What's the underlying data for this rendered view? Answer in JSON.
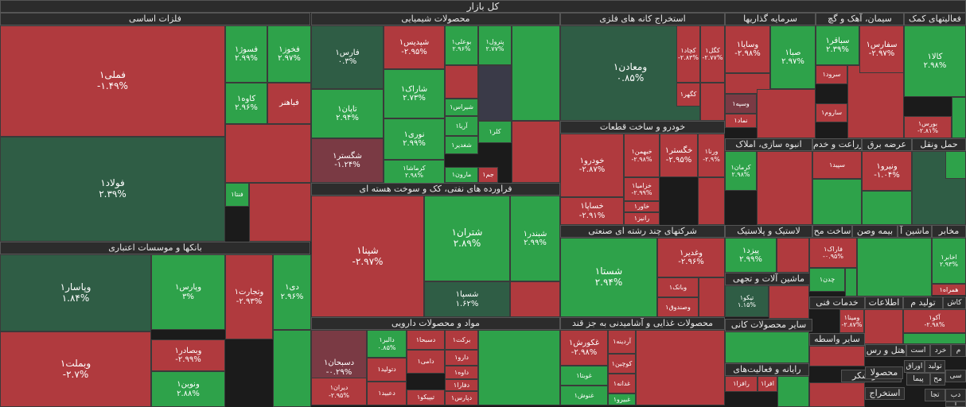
{
  "title": "کل بازار",
  "chart_data": {
    "type": "treemap",
    "colors": {
      "neg": "#b03a3e",
      "negDark": "#7a3a44",
      "pos": "#2ea24a",
      "posDark": "#2f5d45",
      "neutral": "#3a3a48"
    },
    "sectors": [
      {
        "name": "فلزات اساسی",
        "tiles": [
          {
            "n": "فملی۱",
            "v": "-۱.۴۹%"
          },
          {
            "n": "فولاد۱",
            "v": "۲.۳۹%"
          },
          {
            "n": "فخوز۱",
            "v": "۲.۹۷%"
          },
          {
            "n": "فسوژ۱",
            "v": "۲.۹۹%"
          },
          {
            "n": "کاوه۱",
            "v": "۲.۹۶%"
          },
          {
            "n": "فباهنر",
            "v": ""
          },
          {
            "n": "فنتا۱",
            "v": ""
          }
        ]
      },
      {
        "name": "محصولات شیمیایی",
        "tiles": [
          {
            "n": "فارس۱",
            "v": "۰.۳%"
          },
          {
            "n": "شپدیس۱",
            "v": "-۲.۹۵%"
          },
          {
            "n": "بوعلی۱",
            "v": "۲.۹۶%"
          },
          {
            "n": "پترول۱",
            "v": "۲.۷۷%"
          },
          {
            "n": "تاپان۱",
            "v": "۲.۹۴%"
          },
          {
            "n": "شاراک۱",
            "v": "۲.۷۳%"
          },
          {
            "n": "نوری۱",
            "v": "۲.۹۹%"
          },
          {
            "n": "شگستر۱",
            "v": "-۱.۲۴%"
          },
          {
            "n": "کرماشا۱",
            "v": "۲.۹۸%"
          },
          {
            "n": "شیراس۱",
            "v": ""
          },
          {
            "n": "آریا۱",
            "v": ""
          },
          {
            "n": "شغدیر۱",
            "v": ""
          },
          {
            "n": "مارون۱",
            "v": ""
          },
          {
            "n": "کلر۱",
            "v": ""
          },
          {
            "n": "جم۱",
            "v": ""
          }
        ]
      },
      {
        "name": "استخراج کانه های فلزی",
        "tiles": [
          {
            "n": "ومعادن۱",
            "v": "۰.۸۵%"
          },
          {
            "n": "کچاد۱",
            "v": "-۲.۸۳%"
          },
          {
            "n": "کگل۱",
            "v": "-۲.۷۷%"
          },
          {
            "n": "کگهر۱",
            "v": ""
          }
        ]
      },
      {
        "name": "سرمایه گذاریها",
        "tiles": [
          {
            "n": "وسایا۱",
            "v": "-۲.۹۸%"
          },
          {
            "n": "صبا۱",
            "v": "۲.۹۷%"
          },
          {
            "n": "وسپه۱",
            "v": ""
          },
          {
            "n": "نماد۱",
            "v": ""
          }
        ]
      },
      {
        "name": "سیمان، آهک و گچ",
        "tiles": [
          {
            "n": "سباقر۱",
            "v": "۲.۳۹%"
          },
          {
            "n": "سفارس۱",
            "v": "-۲.۹۷%"
          },
          {
            "n": "سرود۱",
            "v": ""
          },
          {
            "n": "ساروم۱",
            "v": ""
          }
        ]
      },
      {
        "name": "فعالیتهای کمک",
        "tiles": [
          {
            "n": "کالا۱",
            "v": "۲.۹۸%"
          },
          {
            "n": "بورس۱",
            "v": "-۲.۸۱%"
          }
        ]
      },
      {
        "name": "خودرو و ساخت قطعات",
        "tiles": [
          {
            "n": "خودرو۱",
            "v": "-۲.۸۷%"
          },
          {
            "n": "خبهمن۱",
            "v": "-۲.۹۸%"
          },
          {
            "n": "خگستر۱",
            "v": "-۲.۹۵%"
          },
          {
            "n": "ورنا۱",
            "v": "-۲.۹%"
          },
          {
            "n": "خساپا۱",
            "v": "-۲.۹۱%"
          },
          {
            "n": "خزامیا۱",
            "v": "-۲.۹۹%"
          },
          {
            "n": "خاور۱",
            "v": ""
          },
          {
            "n": "رانیز۱",
            "v": ""
          }
        ]
      },
      {
        "name": "انبوه سازی، املاک",
        "tiles": [
          {
            "n": "کرمان۱",
            "v": "۲.۹۸%"
          }
        ]
      },
      {
        "name": "زراعت و خدم",
        "tiles": [
          {
            "n": "سپید۱",
            "v": ""
          }
        ]
      },
      {
        "name": "عرضه برق",
        "tiles": [
          {
            "n": "ونیرو۱",
            "v": "-۱.۰۴%"
          }
        ]
      },
      {
        "name": "حمل ونقل",
        "tiles": []
      },
      {
        "name": "فراورده های نفتی، کک و سوخت هسته ای",
        "tiles": [
          {
            "n": "شپنا۱",
            "v": "-۲.۹۷%"
          },
          {
            "n": "شتران۱",
            "v": "۲.۸۹%"
          },
          {
            "n": "شبندر۱",
            "v": "۲.۹۹%"
          },
          {
            "n": "شسپا۱",
            "v": "۱.۶۲%"
          }
        ]
      },
      {
        "name": "بانکها و موسسات اعتباری",
        "tiles": [
          {
            "n": "وپاسار۱",
            "v": "۱.۸۴%"
          },
          {
            "n": "وپارس۱",
            "v": "۳%"
          },
          {
            "n": "وتجارت۱",
            "v": "-۲.۹۳%"
          },
          {
            "n": "دی۱",
            "v": "۲.۹۶%"
          },
          {
            "n": "وبملت۱",
            "v": "-۲.۷%"
          },
          {
            "n": "وبصادر۱",
            "v": "-۲.۹۹%"
          },
          {
            "n": "ونوین۱",
            "v": "۲.۸۸%"
          }
        ]
      },
      {
        "name": "شرکتهای چند رشته ای صنعتی",
        "tiles": [
          {
            "n": "شستا۱",
            "v": "۲.۹۴%"
          },
          {
            "n": "وغدیر۱",
            "v": "-۲.۹۶%"
          },
          {
            "n": "وبانک۱",
            "v": ""
          },
          {
            "n": "وصندوق۱",
            "v": ""
          }
        ]
      },
      {
        "name": "لاستیک و پلاستیک",
        "tiles": [
          {
            "n": "پیزد۱",
            "v": "۲.۹۹%"
          }
        ]
      },
      {
        "name": "مستغلات",
        "tiles": []
      },
      {
        "name": "ساخت مح",
        "tiles": []
      },
      {
        "name": "بیمه وصن",
        "tiles": []
      },
      {
        "name": "ماشین آ",
        "tiles": []
      },
      {
        "name": "مخابر",
        "tiles": [
          {
            "n": "اخابر۱",
            "v": "۲.۹۳%"
          },
          {
            "n": "همراه۱",
            "v": ""
          }
        ]
      },
      {
        "name": "ماشین آلات و تجهی",
        "tiles": [
          {
            "n": "تیکو۱",
            "v": "۱.۱۵%"
          }
        ]
      },
      {
        "name": "فاراک۱",
        "tiles": [
          {
            "n": "فاراک۱",
            "v": "-۰.۹۵%"
          },
          {
            "n": "چدن۱",
            "v": ""
          }
        ]
      },
      {
        "name": "خدمات فنی",
        "tiles": []
      },
      {
        "name": "اطلاعات",
        "tiles": []
      },
      {
        "name": "تولید م",
        "tiles": []
      },
      {
        "name": "کاش",
        "tiles": []
      },
      {
        "name": "مواد و محصولات دارویی",
        "tiles": [
          {
            "n": "دسبحان۱",
            "v": "-۰.۲۹%"
          },
          {
            "n": "دالبر۱",
            "v": "۰.۸۵%"
          },
          {
            "n": "دسبحا۱",
            "v": ""
          },
          {
            "n": "برکت۱",
            "v": ""
          },
          {
            "n": "دتولید۱",
            "v": ""
          },
          {
            "n": "دامی۱",
            "v": ""
          },
          {
            "n": "دارو۱",
            "v": ""
          },
          {
            "n": "داوه۱",
            "v": ""
          },
          {
            "n": "دیران۱",
            "v": "-۲.۹۵%"
          },
          {
            "n": "دعبید۱",
            "v": ""
          },
          {
            "n": "تیپیکو۱",
            "v": ""
          },
          {
            "n": "دفارا۱",
            "v": ""
          },
          {
            "n": "دپارس۱",
            "v": ""
          }
        ]
      },
      {
        "name": "محصولات غذایی و آشامیدنی به جز قند",
        "tiles": [
          {
            "n": "غکورش۱",
            "v": "-۲.۹۸%"
          },
          {
            "n": "غوبتا۱",
            "v": ""
          },
          {
            "n": "غنوش۱",
            "v": ""
          },
          {
            "n": "آردینه۱",
            "v": ""
          },
          {
            "n": "کوچین۱",
            "v": ""
          },
          {
            "n": "غدانه۱",
            "v": ""
          },
          {
            "n": "غبیرو۱",
            "v": ""
          }
        ]
      },
      {
        "name": "سایر محصولات کانی",
        "tiles": [
          {
            "n": "ومینا۱",
            "v": "-۲.۸۷%"
          }
        ]
      },
      {
        "name": "آکو۱",
        "tiles": [
          {
            "n": "آکو۱",
            "v": "-۲.۹۸%"
          }
        ]
      },
      {
        "name": "سایر واسطه",
        "tiles": []
      },
      {
        "name": "هتل و رس",
        "tiles": []
      },
      {
        "name": "است",
        "tiles": []
      },
      {
        "name": "خرد",
        "tiles": []
      },
      {
        "name": "م",
        "tiles": []
      },
      {
        "name": "رایانه و فعالیت‌های",
        "tiles": [
          {
            "n": "افرا۱",
            "v": ""
          },
          {
            "n": "رافزا۱",
            "v": ""
          }
        ]
      },
      {
        "name": "قند و شکر",
        "tiles": []
      },
      {
        "name": "محصولا",
        "tiles": []
      },
      {
        "name": "تولید",
        "tiles": []
      },
      {
        "name": "اوراق",
        "tiles": []
      },
      {
        "name": "استخراج",
        "tiles": []
      },
      {
        "name": "سی",
        "tiles": []
      },
      {
        "name": "مح",
        "tiles": []
      },
      {
        "name": "پیما",
        "tiles": []
      },
      {
        "name": "دب",
        "tiles": []
      },
      {
        "name": "تجا",
        "tiles": []
      },
      {
        "name": "ا",
        "tiles": []
      }
    ]
  }
}
